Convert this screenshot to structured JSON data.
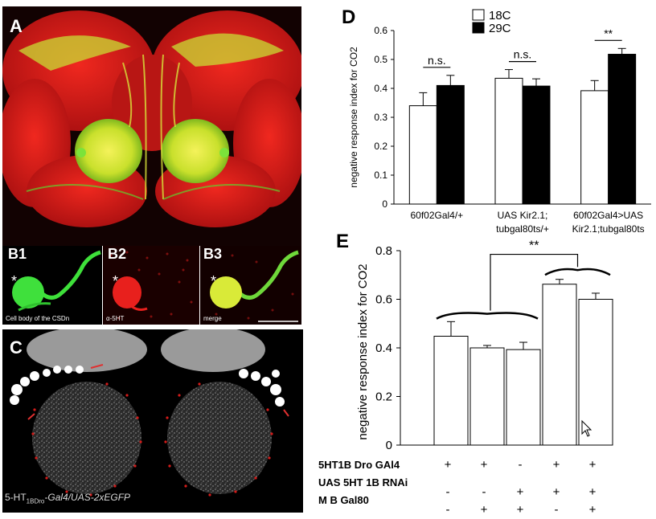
{
  "panel_a": {
    "label": "A"
  },
  "panel_b": {
    "b1_label": "B1",
    "b2_label": "B2",
    "b3_label": "B3",
    "b1_caption": "Cell body of the CSDn",
    "b2_caption": "α-5HT",
    "b3_caption": "merge",
    "asterisk": "*"
  },
  "panel_c": {
    "label": "C",
    "caption_pre": "5-HT",
    "caption_sub": "1BDro",
    "caption_post": "-Gal4/UAS-2xEGFP"
  },
  "colors": {
    "red": "#e0211f",
    "green": "#2ecc2e",
    "yellow": "#d8e83a",
    "black": "#000000"
  },
  "chart_data": [
    {
      "panel": "D",
      "type": "bar",
      "ylabel": "negative response index for CO2",
      "ylim": [
        0,
        0.6
      ],
      "yticks": [
        "0",
        "0.1",
        "0.2",
        "0.3",
        "0.4",
        "0.5",
        "0.6"
      ],
      "categories": [
        [
          "60f02Gal4/+"
        ],
        [
          "UAS Kir2.1;",
          "tubgal80ts/+"
        ],
        [
          "60f02Gal4>UAS",
          "Kir2.1;tubgal80ts"
        ]
      ],
      "series": [
        {
          "name": "18C",
          "color": "#ffffff",
          "values": [
            0.34,
            0.435,
            0.392
          ],
          "errors": [
            0.045,
            0.03,
            0.035
          ]
        },
        {
          "name": "29C",
          "color": "#000000",
          "values": [
            0.41,
            0.408,
            0.518
          ],
          "errors": [
            0.035,
            0.025,
            0.02
          ]
        }
      ],
      "annotations": [
        "n.s.",
        "n.s.",
        "**"
      ],
      "legend": "top"
    },
    {
      "panel": "E",
      "type": "bar",
      "ylabel": "negative response index for CO2",
      "ylim": [
        0,
        0.8
      ],
      "yticks": [
        "0",
        "0.2",
        "0.4",
        "0.6",
        "0.8"
      ],
      "values": [
        0.448,
        0.4,
        0.393,
        0.662,
        0.6
      ],
      "errors": [
        0.06,
        0.01,
        0.03,
        0.02,
        0.025
      ],
      "significance": "**",
      "genotype_rows": [
        {
          "label": "5HT1B Dro GAl4",
          "signs": [
            "+",
            "+",
            "-",
            "+",
            "+"
          ]
        },
        {
          "label": "UAS 5HT 1B RNAi",
          "signs": [
            "-",
            "-",
            "+",
            "+",
            "+"
          ]
        },
        {
          "label": "M B Gal80",
          "signs": [
            "-",
            "+",
            "+",
            "-",
            "+"
          ]
        }
      ]
    }
  ]
}
